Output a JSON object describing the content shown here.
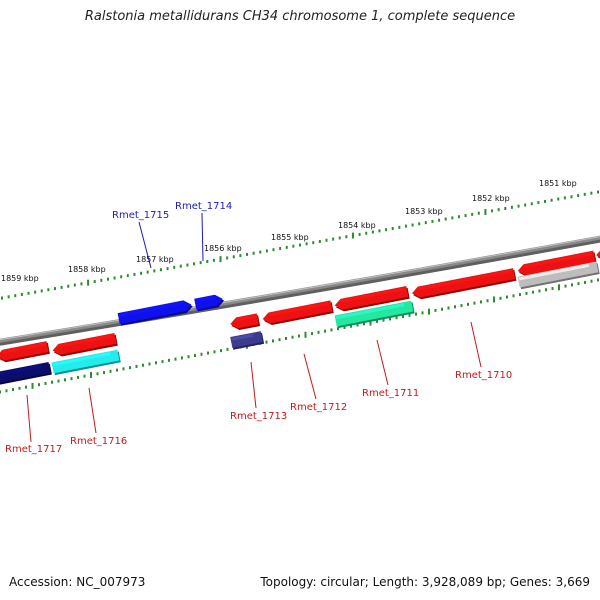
{
  "title": "Ralstonia metallidurans CH34 chromosome 1, complete sequence",
  "footer": {
    "accession": "Accession: NC_007973",
    "summary": "Topology: circular; Length: 3,928,089 bp; Genes: 3,669"
  },
  "colors": {
    "backbone": "#8a8a8a",
    "ruler_tick": "#2e8b2e",
    "forward_label": "#1a1ac8",
    "reverse_label": "#c81818",
    "gene_red": "#ee1111",
    "gene_blue": "#1010ee",
    "gene_navy": "#0c0c6a",
    "gene_cyan": "#22ecec",
    "gene_teal": "#22e8a0",
    "gene_slate": "#3c3c8c",
    "gene_gray": "#bdbdbd"
  },
  "rulers": [
    {
      "name": "outer",
      "labels": [
        "1859 kbp",
        "1858 kbp",
        "1857 kbp",
        "1856 kbp",
        "1855 kbp",
        "1854 kbp",
        "1853 kbp",
        "1852 kbp",
        "1851 kbp"
      ]
    },
    {
      "name": "inner",
      "labels": []
    }
  ],
  "gene_labels": [
    {
      "name": "Rmet_1715",
      "strand": "forward"
    },
    {
      "name": "Rmet_1714",
      "strand": "forward"
    },
    {
      "name": "Rmet_1717",
      "strand": "reverse"
    },
    {
      "name": "Rmet_1716",
      "strand": "reverse"
    },
    {
      "name": "Rmet_1713",
      "strand": "reverse"
    },
    {
      "name": "Rmet_1712",
      "strand": "reverse"
    },
    {
      "name": "Rmet_1711",
      "strand": "reverse"
    },
    {
      "name": "Rmet_1710",
      "strand": "reverse"
    }
  ]
}
